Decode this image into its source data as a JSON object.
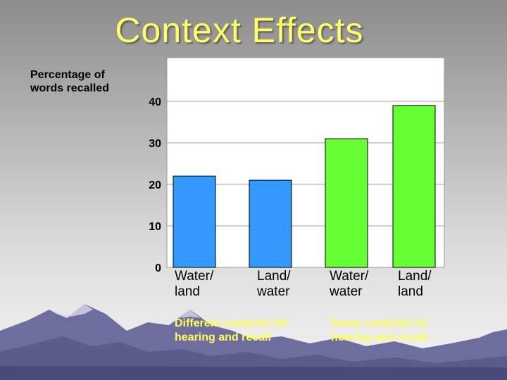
{
  "title": "Context Effects",
  "colors": {
    "title": "#ffff66",
    "blue_bar": "#3399ff",
    "green_bar": "#66ff33",
    "group_label": "#ffff55"
  },
  "chart_data": {
    "type": "bar",
    "title": "",
    "ylabel": "Percentage of\nwords recalled",
    "xlabel": "",
    "ylim": [
      0,
      50
    ],
    "yticks": [
      "0",
      "10",
      "20",
      "30",
      "40"
    ],
    "categories": [
      "Water/\nland",
      "Land/\nwater",
      "Water/\nwater",
      "Land/\nland"
    ],
    "values": [
      22,
      21,
      31,
      39
    ],
    "bar_colors": [
      "#3399ff",
      "#3399ff",
      "#66ff33",
      "#66ff33"
    ],
    "groups": [
      "Different contexts for hearing and recall",
      "Same contexts for hearing and recall"
    ],
    "grid": true
  }
}
